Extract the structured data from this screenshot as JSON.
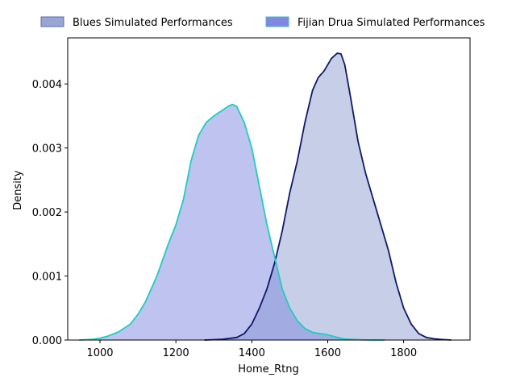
{
  "chart_data": {
    "type": "area",
    "title": "",
    "xlabel": "Home_Rtng",
    "ylabel": "Density",
    "xlim": [
      915,
      1975
    ],
    "ylim": [
      0,
      0.00472
    ],
    "xticks": [
      "1000",
      "1200",
      "1400",
      "1600",
      "1800"
    ],
    "xtick_values": [
      1000,
      1200,
      1400,
      1600,
      1800
    ],
    "yticks": [
      "0.000",
      "0.001",
      "0.002",
      "0.003",
      "0.004"
    ],
    "ytick_values": [
      0,
      0.001,
      0.002,
      0.003,
      0.004
    ],
    "grid": false,
    "legend_position": "top-center, above plot",
    "series": [
      {
        "name": "Blues Simulated Performances",
        "fill_color": "#99a6d3",
        "fill_opacity_note": "semi-transparent navy fill",
        "line_color": "#0d1a66",
        "x": [
          1275,
          1320,
          1360,
          1380,
          1400,
          1420,
          1440,
          1460,
          1480,
          1500,
          1520,
          1540,
          1560,
          1575,
          1590,
          1610,
          1625,
          1635,
          1645,
          1660,
          1680,
          1700,
          1720,
          1740,
          1760,
          1780,
          1800,
          1820,
          1840,
          1860,
          1880,
          1900,
          1925
        ],
        "y": [
          0.0,
          1e-05,
          4e-05,
          0.0001,
          0.00025,
          0.0005,
          0.0008,
          0.0012,
          0.0017,
          0.0023,
          0.0028,
          0.0034,
          0.0039,
          0.0041,
          0.0042,
          0.0044,
          0.00448,
          0.00447,
          0.0043,
          0.0038,
          0.0031,
          0.0026,
          0.0022,
          0.0018,
          0.0014,
          0.0009,
          0.0005,
          0.00025,
          0.0001,
          4e-05,
          2e-05,
          1e-05,
          0.0
        ]
      },
      {
        "name": "Fijian Drua Simulated Performances",
        "fill_color": "#8088e0",
        "fill_opacity_note": "semi-transparent lavender fill",
        "line_color": "#1ecdc0",
        "x": [
          945,
          980,
          1000,
          1020,
          1050,
          1080,
          1100,
          1120,
          1150,
          1180,
          1200,
          1220,
          1240,
          1260,
          1280,
          1300,
          1320,
          1340,
          1350,
          1360,
          1380,
          1400,
          1420,
          1440,
          1460,
          1480,
          1500,
          1520,
          1540,
          1560,
          1580,
          1600,
          1620,
          1640,
          1660,
          1690,
          1720,
          1750
        ],
        "y": [
          0.0,
          1e-05,
          3e-05,
          6e-05,
          0.00013,
          0.00025,
          0.0004,
          0.0006,
          0.001,
          0.0015,
          0.0018,
          0.0022,
          0.0028,
          0.0032,
          0.0034,
          0.0035,
          0.00358,
          0.00366,
          0.00368,
          0.00365,
          0.0034,
          0.003,
          0.0024,
          0.0018,
          0.0013,
          0.0008,
          0.0005,
          0.0003,
          0.00018,
          0.00012,
          0.0001,
          8e-05,
          5e-05,
          2e-05,
          1e-05,
          3e-06,
          1e-06,
          0.0
        ]
      }
    ]
  }
}
